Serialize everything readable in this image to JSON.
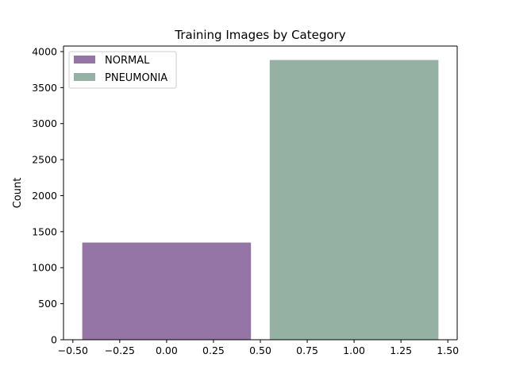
{
  "chart_data": {
    "type": "bar",
    "title": "Training Images by Category",
    "xlabel": "",
    "ylabel": "Count",
    "series": [
      {
        "name": "NORMAL",
        "x": 0,
        "value": 1349,
        "color": "#9575a5"
      },
      {
        "name": "PNEUMONIA",
        "x": 1,
        "value": 3883,
        "color": "#95b1a3"
      }
    ],
    "bar_width": 0.9,
    "xlim": [
      -0.55,
      1.55
    ],
    "ylim": [
      0,
      4077
    ],
    "xticks": [
      "−0.50",
      "−0.25",
      "0.00",
      "0.25",
      "0.50",
      "0.75",
      "1.00",
      "1.25",
      "1.50"
    ],
    "xtick_values": [
      -0.5,
      -0.25,
      0,
      0.25,
      0.5,
      0.75,
      1.0,
      1.25,
      1.5
    ],
    "yticks": [
      "0",
      "500",
      "1000",
      "1500",
      "2000",
      "2500",
      "3000",
      "3500",
      "4000"
    ],
    "ytick_values": [
      0,
      500,
      1000,
      1500,
      2000,
      2500,
      3000,
      3500,
      4000
    ],
    "legend_position": "top-left",
    "grid": false
  }
}
